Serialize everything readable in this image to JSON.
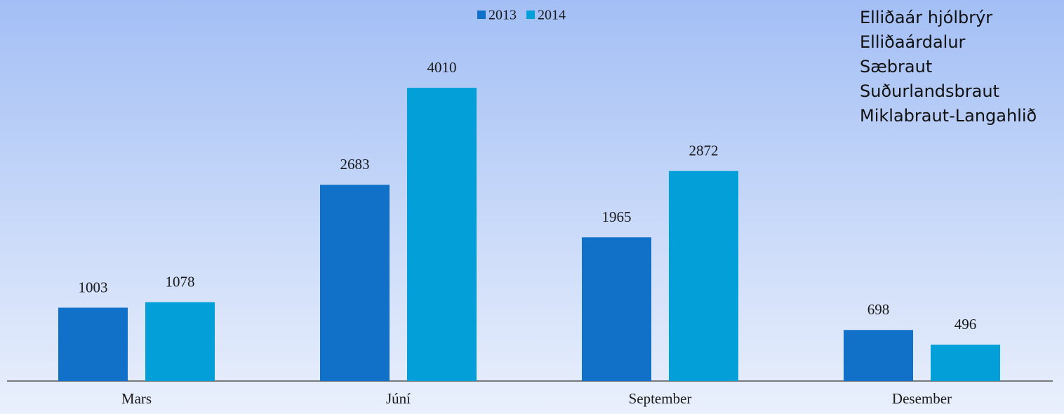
{
  "chart_data": {
    "type": "bar",
    "categories": [
      "Mars",
      "Júní",
      "September",
      "Desember"
    ],
    "series": [
      {
        "name": "2013",
        "color": "#1170c8",
        "values": [
          1003,
          2683,
          1965,
          698
        ]
      },
      {
        "name": "2014",
        "color": "#039fd8",
        "values": [
          1078,
          4010,
          2872,
          496
        ]
      }
    ],
    "ylim": [
      0,
      5000
    ],
    "annotations": [
      "Elliðaár hjólbrýr",
      "Elliðaárdalur",
      "Sæbraut",
      "Suðurlandsbraut",
      "Miklabraut-Langahlið"
    ]
  }
}
